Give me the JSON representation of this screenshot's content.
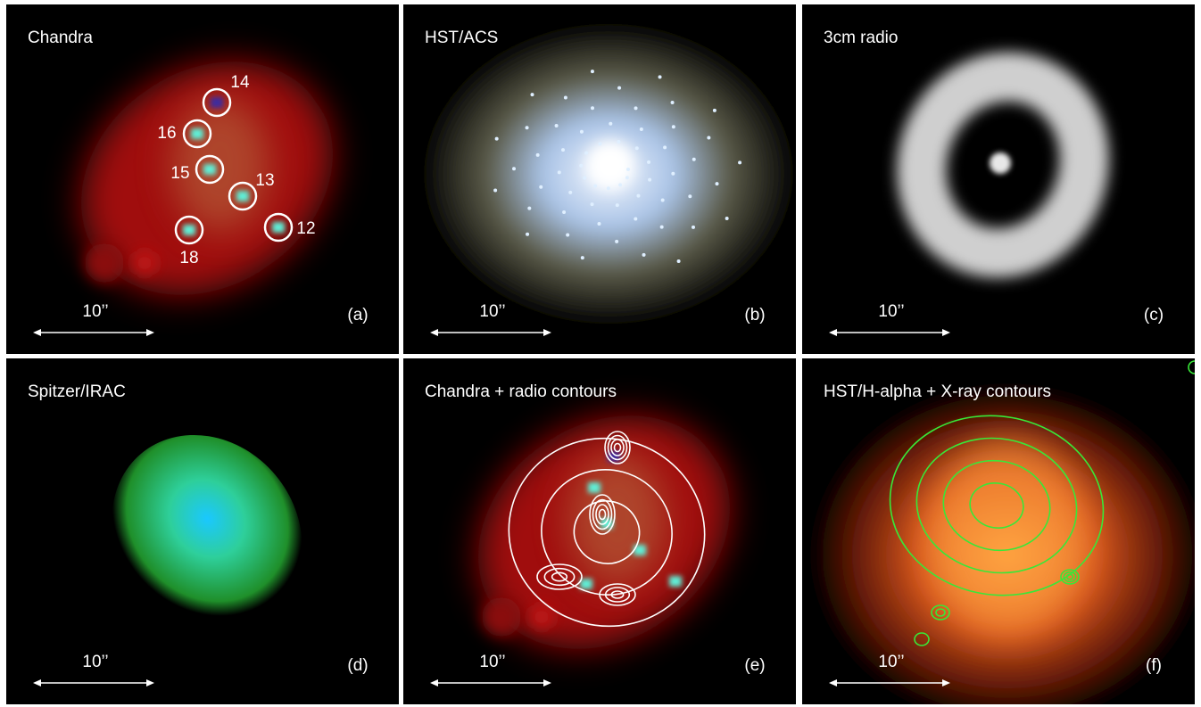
{
  "panels": [
    {
      "title": "Chandra",
      "label": "(a)",
      "scale": "10’’",
      "sources": [
        "14",
        "16",
        "15",
        "13",
        "12",
        "18"
      ]
    },
    {
      "title": "HST/ACS",
      "label": "(b)",
      "scale": "10’’"
    },
    {
      "title": "3cm radio",
      "label": "(c)",
      "scale": "10’’"
    },
    {
      "title": "Spitzer/IRAC",
      "label": "(d)",
      "scale": "10’’"
    },
    {
      "title": "Chandra + radio contours",
      "label": "(e)",
      "scale": "10’’"
    },
    {
      "title": "HST/H-alpha + X-ray contours",
      "label": "(f)",
      "scale": "10’’"
    }
  ]
}
